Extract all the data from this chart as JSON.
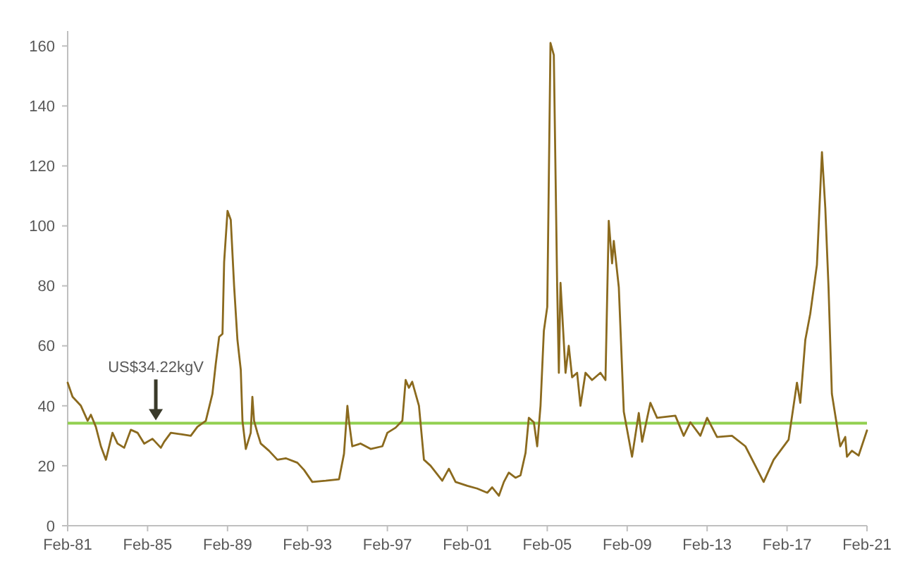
{
  "chart_data": {
    "type": "line",
    "xlim": [
      "1981-02",
      "2021-02"
    ],
    "ylim": [
      0,
      165
    ],
    "xticks": [
      {
        "value": "1981-02",
        "label": "Feb-81"
      },
      {
        "value": "1985-02",
        "label": "Feb-85"
      },
      {
        "value": "1989-02",
        "label": "Feb-89"
      },
      {
        "value": "1993-02",
        "label": "Feb-93"
      },
      {
        "value": "1997-02",
        "label": "Feb-97"
      },
      {
        "value": "2001-02",
        "label": "Feb-01"
      },
      {
        "value": "2005-02",
        "label": "Feb-05"
      },
      {
        "value": "2009-02",
        "label": "Feb-09"
      },
      {
        "value": "2013-02",
        "label": "Feb-13"
      },
      {
        "value": "2017-02",
        "label": "Feb-17"
      },
      {
        "value": "2021-02",
        "label": "Feb-21"
      }
    ],
    "yticks": [
      0,
      20,
      40,
      60,
      80,
      100,
      120,
      140,
      160
    ],
    "grid": false,
    "marker": "none",
    "line_style": "solid",
    "series": [
      {
        "color": "#8b6a1e",
        "x": [
          "1981-02",
          "1981-05",
          "1981-10",
          "1982-02",
          "1982-04",
          "1982-07",
          "1982-10",
          "1983-01",
          "1983-05",
          "1983-08",
          "1983-12",
          "1984-04",
          "1984-08",
          "1984-12",
          "1985-05",
          "1985-10",
          "1985-12",
          "1986-04",
          "1986-10",
          "1987-04",
          "1987-08",
          "1988-01",
          "1988-05",
          "1988-07",
          "1988-09",
          "1988-11",
          "1988-12",
          "1989-02",
          "1989-04",
          "1989-06",
          "1989-08",
          "1989-10",
          "1989-11",
          "1990-01",
          "1990-04",
          "1990-05",
          "1990-06",
          "1990-08",
          "1990-10",
          "1991-03",
          "1991-08",
          "1992-01",
          "1992-08",
          "1992-12",
          "1993-05",
          "1994-01",
          "1994-09",
          "1994-12",
          "1995-02",
          "1995-03",
          "1995-05",
          "1995-10",
          "1996-04",
          "1996-11",
          "1997-02",
          "1997-07",
          "1997-11",
          "1998-01",
          "1998-03",
          "1998-05",
          "1998-09",
          "1998-12",
          "1999-04",
          "1999-11",
          "2000-03",
          "2000-07",
          "2001-02",
          "2001-08",
          "2002-02",
          "2002-05",
          "2002-09",
          "2002-12",
          "2003-03",
          "2003-07",
          "2003-10",
          "2004-01",
          "2004-03",
          "2004-06",
          "2004-08",
          "2004-10",
          "2004-12",
          "2005-02",
          "2005-04",
          "2005-06",
          "2005-08",
          "2005-09",
          "2005-10",
          "2006-01",
          "2006-03",
          "2006-05",
          "2006-08",
          "2006-10",
          "2007-01",
          "2007-05",
          "2007-10",
          "2008-01",
          "2008-03",
          "2008-05",
          "2008-06",
          "2008-09",
          "2008-12",
          "2009-05",
          "2009-09",
          "2009-11",
          "2010-04",
          "2010-08",
          "2011-07",
          "2011-12",
          "2012-04",
          "2012-10",
          "2013-02",
          "2013-08",
          "2014-05",
          "2015-01",
          "2015-12",
          "2016-06",
          "2017-03",
          "2017-08",
          "2017-10",
          "2018-01",
          "2018-04",
          "2018-08",
          "2018-11",
          "2019-01",
          "2019-03",
          "2019-05",
          "2019-10",
          "2020-01",
          "2020-02",
          "2020-05",
          "2020-09",
          "2021-02"
        ],
        "values": [
          47.7,
          43,
          40,
          35,
          37,
          33,
          26.5,
          22,
          31,
          27.4,
          26,
          32,
          31,
          27.4,
          29,
          26,
          28,
          31,
          30.5,
          30,
          33,
          35,
          44,
          54,
          63,
          64,
          88,
          105,
          102,
          80,
          62,
          52,
          35,
          25.6,
          31,
          43,
          35,
          31,
          27.4,
          25,
          22,
          22.5,
          21,
          18.6,
          14.6,
          15,
          15.5,
          24,
          40,
          35,
          26.5,
          27.4,
          25.6,
          26.5,
          31,
          32.7,
          35,
          48.6,
          46,
          48,
          40,
          22,
          20,
          15,
          19,
          14.6,
          13.3,
          12.4,
          11,
          12.8,
          10,
          14.6,
          17.7,
          16,
          16.8,
          24.3,
          36,
          34.5,
          26.5,
          40,
          65,
          73,
          161,
          157,
          80,
          51,
          81,
          51,
          60,
          49.5,
          51,
          40,
          51,
          48.6,
          51,
          48.6,
          101.7,
          87.5,
          95,
          79.5,
          38,
          23,
          37.6,
          28,
          41,
          36,
          36.7,
          30,
          34.5,
          30,
          36,
          29.6,
          30,
          26.5,
          14.6,
          22,
          28.7,
          47.7,
          41,
          62,
          70.7,
          87,
          124.6,
          106,
          79.5,
          44,
          26.5,
          29.6,
          23,
          25,
          23.4,
          31.8
        ]
      }
    ],
    "ref_lines": [
      {
        "axis": "y",
        "value": 34.22,
        "color": "#92d050"
      }
    ],
    "annotations": [
      {
        "text": "US$34.22kgV",
        "x": "1985-07",
        "y": 34.22
      }
    ]
  }
}
